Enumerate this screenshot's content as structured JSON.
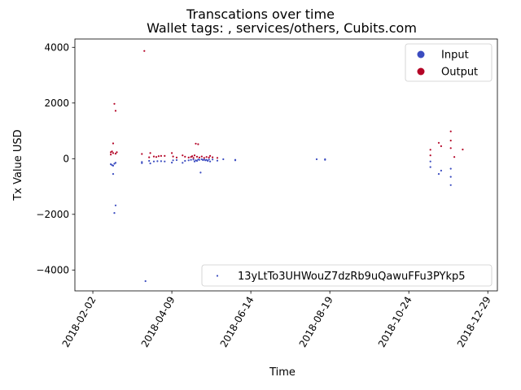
{
  "chart_data": {
    "type": "scatter",
    "title": "Transcations over time",
    "subtitle": "Wallet tags: , services/others, Cubits.com",
    "xlabel": "Time",
    "ylabel": "Tx Value USD",
    "x_ticks": [
      "2018-02-02",
      "2018-04-09",
      "2018-06-14",
      "2018-08-19",
      "2018-10-24",
      "2018-12-29"
    ],
    "y_ticks": [
      4000,
      2000,
      0,
      -2000,
      -4000
    ],
    "xlim": [
      "2018-01-18",
      "2019-01-06"
    ],
    "ylim": [
      -4750,
      4300
    ],
    "legend_main": {
      "placement": "upper right",
      "entries": [
        {
          "label": "Input",
          "color": "#3b4cc0"
        },
        {
          "label": "Output",
          "color": "#b40426"
        }
      ]
    },
    "legend_address": {
      "placement": "lower right",
      "label": "13yLtTo3UHWouZ7dzRb9uQawuFFu3PYkp5",
      "color": "#3b4cc0"
    },
    "series": [
      {
        "name": "Input",
        "color": "#3b4cc0",
        "points": [
          [
            "2018-02-17",
            -200
          ],
          [
            "2018-02-18",
            -230
          ],
          [
            "2018-02-19",
            -250
          ],
          [
            "2018-02-20",
            -180
          ],
          [
            "2018-02-19",
            -550
          ],
          [
            "2018-02-20",
            -1950
          ],
          [
            "2018-02-21",
            -1680
          ],
          [
            "2018-02-21",
            -150
          ],
          [
            "2018-03-15",
            -120
          ],
          [
            "2018-03-15",
            -160
          ],
          [
            "2018-03-18",
            -4400
          ],
          [
            "2018-03-21",
            -80
          ],
          [
            "2018-03-22",
            -170
          ],
          [
            "2018-03-25",
            -100
          ],
          [
            "2018-03-28",
            -90
          ],
          [
            "2018-03-31",
            -90
          ],
          [
            "2018-04-03",
            -100
          ],
          [
            "2018-04-09",
            -140
          ],
          [
            "2018-04-10",
            -60
          ],
          [
            "2018-04-13",
            -50
          ],
          [
            "2018-04-18",
            -150
          ],
          [
            "2018-04-20",
            -80
          ],
          [
            "2018-04-23",
            -60
          ],
          [
            "2018-04-25",
            -40
          ],
          [
            "2018-04-27",
            -30
          ],
          [
            "2018-04-28",
            -100
          ],
          [
            "2018-04-29",
            -60
          ],
          [
            "2018-04-30",
            -80
          ],
          [
            "2018-05-01",
            -30
          ],
          [
            "2018-05-02",
            -40
          ],
          [
            "2018-05-03",
            -500
          ],
          [
            "2018-05-04",
            -20
          ],
          [
            "2018-05-05",
            -50
          ],
          [
            "2018-05-06",
            -30
          ],
          [
            "2018-05-07",
            -60
          ],
          [
            "2018-05-08",
            -40
          ],
          [
            "2018-05-09",
            -80
          ],
          [
            "2018-05-10",
            -30
          ],
          [
            "2018-05-11",
            -100
          ],
          [
            "2018-05-13",
            -30
          ],
          [
            "2018-05-17",
            -70
          ],
          [
            "2018-05-22",
            -20
          ],
          [
            "2018-06-01",
            -60
          ],
          [
            "2018-06-01",
            -40
          ],
          [
            "2018-08-08",
            -20
          ],
          [
            "2018-08-15",
            -20
          ],
          [
            "2018-08-15",
            -40
          ],
          [
            "2018-11-11",
            -100
          ],
          [
            "2018-11-11",
            -300
          ],
          [
            "2018-11-18",
            -550
          ],
          [
            "2018-11-20",
            -430
          ],
          [
            "2018-11-28",
            -950
          ],
          [
            "2018-11-28",
            -360
          ],
          [
            "2018-11-28",
            -650
          ]
        ]
      },
      {
        "name": "Output",
        "color": "#b40426",
        "points": [
          [
            "2018-02-17",
            150
          ],
          [
            "2018-02-17",
            230
          ],
          [
            "2018-02-18",
            260
          ],
          [
            "2018-02-19",
            200
          ],
          [
            "2018-02-19",
            550
          ],
          [
            "2018-02-20",
            1970
          ],
          [
            "2018-02-21",
            1720
          ],
          [
            "2018-02-21",
            180
          ],
          [
            "2018-02-22",
            230
          ],
          [
            "2018-03-15",
            170
          ],
          [
            "2018-03-17",
            3870
          ],
          [
            "2018-03-21",
            50
          ],
          [
            "2018-03-22",
            200
          ],
          [
            "2018-03-25",
            80
          ],
          [
            "2018-03-27",
            60
          ],
          [
            "2018-03-29",
            90
          ],
          [
            "2018-03-31",
            100
          ],
          [
            "2018-04-03",
            100
          ],
          [
            "2018-04-09",
            200
          ],
          [
            "2018-04-10",
            80
          ],
          [
            "2018-04-13",
            40
          ],
          [
            "2018-04-18",
            120
          ],
          [
            "2018-04-20",
            70
          ],
          [
            "2018-04-23",
            40
          ],
          [
            "2018-04-25",
            60
          ],
          [
            "2018-04-26",
            90
          ],
          [
            "2018-04-27",
            30
          ],
          [
            "2018-04-28",
            120
          ],
          [
            "2018-04-29",
            540
          ],
          [
            "2018-04-30",
            70
          ],
          [
            "2018-05-01",
            520
          ],
          [
            "2018-05-02",
            40
          ],
          [
            "2018-05-04",
            80
          ],
          [
            "2018-05-06",
            30
          ],
          [
            "2018-05-08",
            60
          ],
          [
            "2018-05-10",
            40
          ],
          [
            "2018-05-11",
            100
          ],
          [
            "2018-05-13",
            50
          ],
          [
            "2018-05-17",
            30
          ],
          [
            "2018-11-11",
            320
          ],
          [
            "2018-11-11",
            120
          ],
          [
            "2018-11-18",
            570
          ],
          [
            "2018-11-20",
            450
          ],
          [
            "2018-11-28",
            980
          ],
          [
            "2018-11-28",
            650
          ],
          [
            "2018-11-28",
            380
          ],
          [
            "2018-12-01",
            60
          ],
          [
            "2018-12-08",
            330
          ]
        ]
      }
    ]
  }
}
